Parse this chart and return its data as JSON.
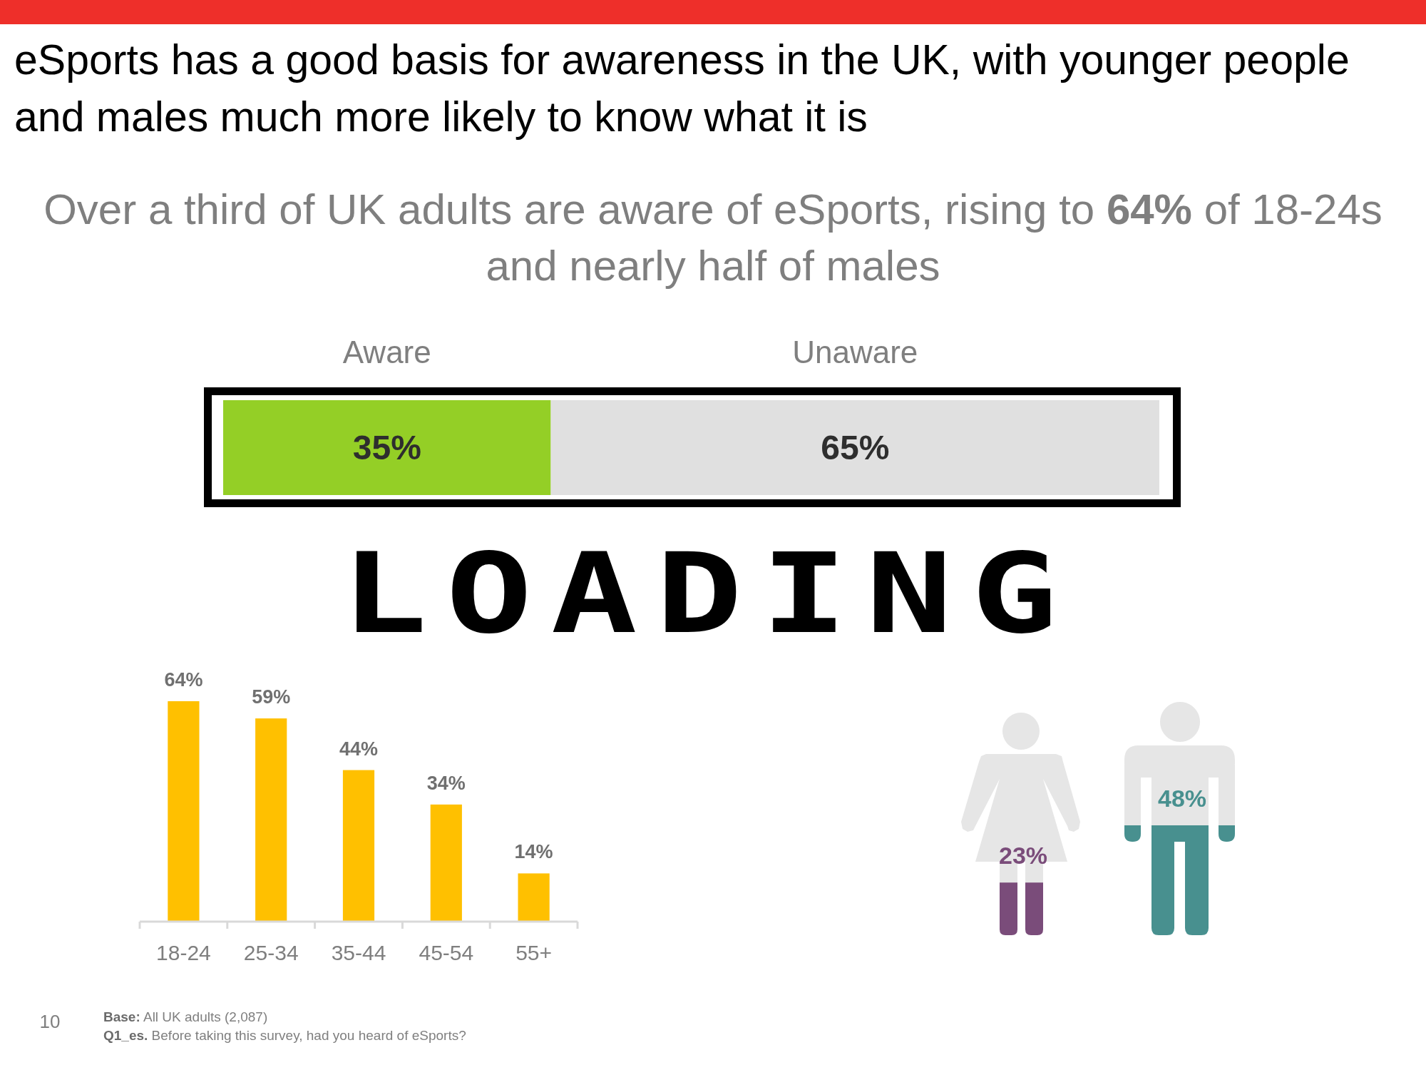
{
  "chart_data": [
    {
      "type": "bar",
      "orientation": "horizontal",
      "stacked": true,
      "title": "eSports has a good basis for awareness in the UK, with younger people and males much more likely to know what it is",
      "subtitle": "Over a third of UK adults are aware of eSports, rising to 64% of 18-24s and nearly half of males",
      "categories": [
        null
      ],
      "series": [
        {
          "name": "Aware",
          "color": "#94cf26",
          "values": [
            35
          ],
          "value_labels": [
            "35%"
          ]
        },
        {
          "name": "Unaware",
          "color": "#e0e0e0",
          "values": [
            65
          ],
          "value_labels": [
            "65%"
          ]
        }
      ],
      "xlim": [
        0,
        100
      ],
      "tick_labels": false,
      "annotations": [
        "LOADING",
        "10",
        "Base: All UK adults (2,087)",
        "Q1_es. Before taking this survey, had you heard of eSports?"
      ]
    },
    {
      "type": "bar",
      "categories": [
        "18-24",
        "25-34",
        "35-44",
        "45-54",
        "55+"
      ],
      "values": [
        64,
        59,
        44,
        34,
        14
      ],
      "value_labels": [
        "64%",
        "59%",
        "44%",
        "34%",
        "14%"
      ],
      "color": "#ffc000",
      "tick_labels": "x"
    },
    {
      "type": "bar",
      "categories": [
        null,
        null
      ],
      "values": [
        23,
        48
      ],
      "value_labels": [
        "23%",
        "48%"
      ],
      "colors": [
        "#7a4c7a",
        "#48908f"
      ],
      "tick_labels": false
    }
  ]
}
